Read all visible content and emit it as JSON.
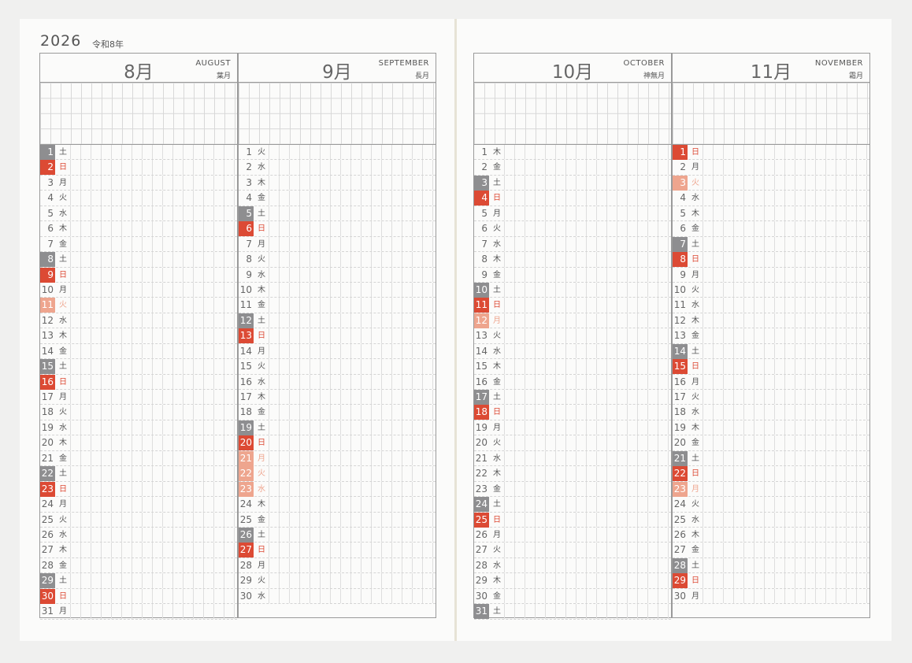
{
  "header": {
    "year": "2026",
    "era": "令和8年"
  },
  "months": [
    {
      "num": "8月",
      "en": "AUGUST",
      "jp": "葉月",
      "days": [
        {
          "d": "1",
          "w": "土",
          "t": "sat"
        },
        {
          "d": "2",
          "w": "日",
          "t": "sun"
        },
        {
          "d": "3",
          "w": "月",
          "t": ""
        },
        {
          "d": "4",
          "w": "火",
          "t": ""
        },
        {
          "d": "5",
          "w": "水",
          "t": ""
        },
        {
          "d": "6",
          "w": "木",
          "t": ""
        },
        {
          "d": "7",
          "w": "金",
          "t": ""
        },
        {
          "d": "8",
          "w": "土",
          "t": "sat"
        },
        {
          "d": "9",
          "w": "日",
          "t": "sun"
        },
        {
          "d": "10",
          "w": "月",
          "t": ""
        },
        {
          "d": "11",
          "w": "火",
          "t": "hol"
        },
        {
          "d": "12",
          "w": "水",
          "t": ""
        },
        {
          "d": "13",
          "w": "木",
          "t": ""
        },
        {
          "d": "14",
          "w": "金",
          "t": ""
        },
        {
          "d": "15",
          "w": "土",
          "t": "sat"
        },
        {
          "d": "16",
          "w": "日",
          "t": "sun"
        },
        {
          "d": "17",
          "w": "月",
          "t": ""
        },
        {
          "d": "18",
          "w": "火",
          "t": ""
        },
        {
          "d": "19",
          "w": "水",
          "t": ""
        },
        {
          "d": "20",
          "w": "木",
          "t": ""
        },
        {
          "d": "21",
          "w": "金",
          "t": ""
        },
        {
          "d": "22",
          "w": "土",
          "t": "sat"
        },
        {
          "d": "23",
          "w": "日",
          "t": "sun"
        },
        {
          "d": "24",
          "w": "月",
          "t": ""
        },
        {
          "d": "25",
          "w": "火",
          "t": ""
        },
        {
          "d": "26",
          "w": "水",
          "t": ""
        },
        {
          "d": "27",
          "w": "木",
          "t": ""
        },
        {
          "d": "28",
          "w": "金",
          "t": ""
        },
        {
          "d": "29",
          "w": "土",
          "t": "sat"
        },
        {
          "d": "30",
          "w": "日",
          "t": "sun"
        },
        {
          "d": "31",
          "w": "月",
          "t": ""
        }
      ]
    },
    {
      "num": "9月",
      "en": "SEPTEMBER",
      "jp": "長月",
      "days": [
        {
          "d": "1",
          "w": "火",
          "t": ""
        },
        {
          "d": "2",
          "w": "水",
          "t": ""
        },
        {
          "d": "3",
          "w": "木",
          "t": ""
        },
        {
          "d": "4",
          "w": "金",
          "t": ""
        },
        {
          "d": "5",
          "w": "土",
          "t": "sat"
        },
        {
          "d": "6",
          "w": "日",
          "t": "sun"
        },
        {
          "d": "7",
          "w": "月",
          "t": ""
        },
        {
          "d": "8",
          "w": "火",
          "t": ""
        },
        {
          "d": "9",
          "w": "水",
          "t": ""
        },
        {
          "d": "10",
          "w": "木",
          "t": ""
        },
        {
          "d": "11",
          "w": "金",
          "t": ""
        },
        {
          "d": "12",
          "w": "土",
          "t": "sat"
        },
        {
          "d": "13",
          "w": "日",
          "t": "sun"
        },
        {
          "d": "14",
          "w": "月",
          "t": ""
        },
        {
          "d": "15",
          "w": "火",
          "t": ""
        },
        {
          "d": "16",
          "w": "水",
          "t": ""
        },
        {
          "d": "17",
          "w": "木",
          "t": ""
        },
        {
          "d": "18",
          "w": "金",
          "t": ""
        },
        {
          "d": "19",
          "w": "土",
          "t": "sat"
        },
        {
          "d": "20",
          "w": "日",
          "t": "sun"
        },
        {
          "d": "21",
          "w": "月",
          "t": "hol"
        },
        {
          "d": "22",
          "w": "火",
          "t": "hol"
        },
        {
          "d": "23",
          "w": "水",
          "t": "hol"
        },
        {
          "d": "24",
          "w": "木",
          "t": ""
        },
        {
          "d": "25",
          "w": "金",
          "t": ""
        },
        {
          "d": "26",
          "w": "土",
          "t": "sat"
        },
        {
          "d": "27",
          "w": "日",
          "t": "sun"
        },
        {
          "d": "28",
          "w": "月",
          "t": ""
        },
        {
          "d": "29",
          "w": "火",
          "t": ""
        },
        {
          "d": "30",
          "w": "水",
          "t": ""
        }
      ]
    },
    {
      "num": "10月",
      "en": "OCTOBER",
      "jp": "神無月",
      "days": [
        {
          "d": "1",
          "w": "木",
          "t": ""
        },
        {
          "d": "2",
          "w": "金",
          "t": ""
        },
        {
          "d": "3",
          "w": "土",
          "t": "sat"
        },
        {
          "d": "4",
          "w": "日",
          "t": "sun"
        },
        {
          "d": "5",
          "w": "月",
          "t": ""
        },
        {
          "d": "6",
          "w": "火",
          "t": ""
        },
        {
          "d": "7",
          "w": "水",
          "t": ""
        },
        {
          "d": "8",
          "w": "木",
          "t": ""
        },
        {
          "d": "9",
          "w": "金",
          "t": ""
        },
        {
          "d": "10",
          "w": "土",
          "t": "sat"
        },
        {
          "d": "11",
          "w": "日",
          "t": "sun"
        },
        {
          "d": "12",
          "w": "月",
          "t": "hol"
        },
        {
          "d": "13",
          "w": "火",
          "t": ""
        },
        {
          "d": "14",
          "w": "水",
          "t": ""
        },
        {
          "d": "15",
          "w": "木",
          "t": ""
        },
        {
          "d": "16",
          "w": "金",
          "t": ""
        },
        {
          "d": "17",
          "w": "土",
          "t": "sat"
        },
        {
          "d": "18",
          "w": "日",
          "t": "sun"
        },
        {
          "d": "19",
          "w": "月",
          "t": ""
        },
        {
          "d": "20",
          "w": "火",
          "t": ""
        },
        {
          "d": "21",
          "w": "水",
          "t": ""
        },
        {
          "d": "22",
          "w": "木",
          "t": ""
        },
        {
          "d": "23",
          "w": "金",
          "t": ""
        },
        {
          "d": "24",
          "w": "土",
          "t": "sat"
        },
        {
          "d": "25",
          "w": "日",
          "t": "sun"
        },
        {
          "d": "26",
          "w": "月",
          "t": ""
        },
        {
          "d": "27",
          "w": "火",
          "t": ""
        },
        {
          "d": "28",
          "w": "水",
          "t": ""
        },
        {
          "d": "29",
          "w": "木",
          "t": ""
        },
        {
          "d": "30",
          "w": "金",
          "t": ""
        },
        {
          "d": "31",
          "w": "土",
          "t": "sat"
        }
      ]
    },
    {
      "num": "11月",
      "en": "NOVEMBER",
      "jp": "霜月",
      "days": [
        {
          "d": "1",
          "w": "日",
          "t": "sun"
        },
        {
          "d": "2",
          "w": "月",
          "t": ""
        },
        {
          "d": "3",
          "w": "火",
          "t": "hol"
        },
        {
          "d": "4",
          "w": "水",
          "t": ""
        },
        {
          "d": "5",
          "w": "木",
          "t": ""
        },
        {
          "d": "6",
          "w": "金",
          "t": ""
        },
        {
          "d": "7",
          "w": "土",
          "t": "sat"
        },
        {
          "d": "8",
          "w": "日",
          "t": "sun"
        },
        {
          "d": "9",
          "w": "月",
          "t": ""
        },
        {
          "d": "10",
          "w": "火",
          "t": ""
        },
        {
          "d": "11",
          "w": "水",
          "t": ""
        },
        {
          "d": "12",
          "w": "木",
          "t": ""
        },
        {
          "d": "13",
          "w": "金",
          "t": ""
        },
        {
          "d": "14",
          "w": "土",
          "t": "sat"
        },
        {
          "d": "15",
          "w": "日",
          "t": "sun"
        },
        {
          "d": "16",
          "w": "月",
          "t": ""
        },
        {
          "d": "17",
          "w": "火",
          "t": ""
        },
        {
          "d": "18",
          "w": "水",
          "t": ""
        },
        {
          "d": "19",
          "w": "木",
          "t": ""
        },
        {
          "d": "20",
          "w": "金",
          "t": ""
        },
        {
          "d": "21",
          "w": "土",
          "t": "sat"
        },
        {
          "d": "22",
          "w": "日",
          "t": "sun"
        },
        {
          "d": "23",
          "w": "月",
          "t": "hol"
        },
        {
          "d": "24",
          "w": "火",
          "t": ""
        },
        {
          "d": "25",
          "w": "水",
          "t": ""
        },
        {
          "d": "26",
          "w": "木",
          "t": ""
        },
        {
          "d": "27",
          "w": "金",
          "t": ""
        },
        {
          "d": "28",
          "w": "土",
          "t": "sat"
        },
        {
          "d": "29",
          "w": "日",
          "t": "sun"
        },
        {
          "d": "30",
          "w": "月",
          "t": ""
        }
      ]
    }
  ],
  "colors": {
    "saturday": "#8e8e90",
    "sunday": "#dc4a34",
    "holiday": "#eea58e",
    "rule": "#9a9a9a"
  }
}
